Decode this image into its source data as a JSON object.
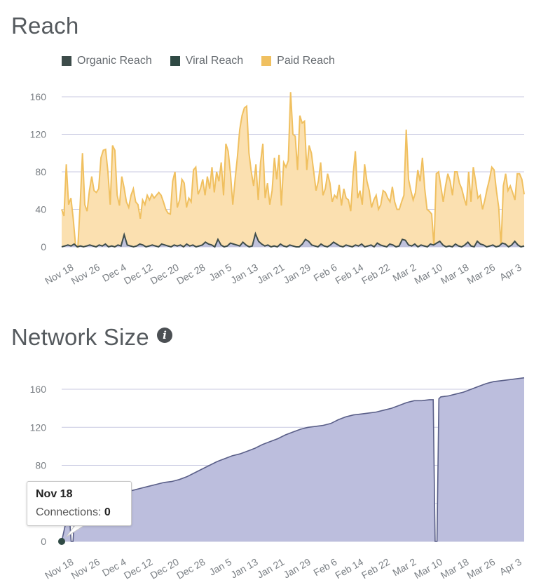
{
  "reach": {
    "title": "Reach"
  },
  "network": {
    "title": "Network Size",
    "info_icon": "info-icon"
  },
  "tooltip": {
    "date": "Nov 18",
    "label": "Connections:",
    "value": "0"
  },
  "colors": {
    "organic": "#3d4c4a",
    "viral": "#2f4a44",
    "paid_line": "#f0c060",
    "paid_fill": "#fbe0b0",
    "organic_fill": "#c0c2dc",
    "network_fill": "#bcbedd",
    "network_line": "#5a5f88",
    "grid": "#c9cae2"
  },
  "chart_data": [
    {
      "type": "area",
      "title": "Reach",
      "x_tick_labels": [
        "Nov 18",
        "Nov 26",
        "Dec 4",
        "Dec 12",
        "Dec 20",
        "Dec 28",
        "Jan 5",
        "Jan 13",
        "Jan 21",
        "Jan 29",
        "Feb 6",
        "Feb 14",
        "Feb 22",
        "Mar 2",
        "Mar 10",
        "Mar 18",
        "Mar 26",
        "Apr 3"
      ],
      "y_ticks": [
        0,
        40,
        80,
        120,
        160
      ],
      "ylim": [
        0,
        160
      ],
      "legend": [
        "Organic Reach",
        "Viral Reach",
        "Paid Reach"
      ],
      "legend_placement": "top-left",
      "grid": true,
      "series": [
        {
          "name": "Paid Reach",
          "values": [
            40,
            33,
            88,
            45,
            52,
            30,
            2,
            0,
            45,
            100,
            45,
            38,
            60,
            75,
            60,
            58,
            62,
            95,
            103,
            104,
            80,
            45,
            108,
            103,
            55,
            44,
            75,
            63,
            48,
            42,
            55,
            62,
            48,
            45,
            30,
            50,
            45,
            55,
            50,
            56,
            52,
            55,
            58,
            55,
            48,
            40,
            36,
            35,
            70,
            80,
            42,
            50,
            72,
            68,
            42,
            52,
            48,
            82,
            85,
            56,
            62,
            72,
            55,
            75,
            62,
            85,
            58,
            80,
            70,
            90,
            55,
            110,
            102,
            78,
            45,
            72,
            96,
            125,
            140,
            148,
            150,
            100,
            80,
            65,
            88,
            50,
            90,
            110,
            52,
            68,
            45,
            60,
            95,
            72,
            98,
            44,
            90,
            85,
            92,
            165,
            120,
            118,
            82,
            140,
            132,
            134,
            82,
            108,
            100,
            80,
            60,
            70,
            90,
            55,
            62,
            78,
            68,
            48,
            55,
            52,
            66,
            44,
            62,
            52,
            50,
            38,
            76,
            102,
            52,
            60,
            45,
            88,
            70,
            60,
            42,
            50,
            55,
            40,
            45,
            60,
            58,
            52,
            48,
            64,
            48,
            40,
            40,
            48,
            55,
            125,
            72,
            60,
            50,
            58,
            82,
            70,
            95,
            62,
            40,
            38,
            35,
            0,
            78,
            80,
            64,
            48,
            65,
            78,
            70,
            55,
            80,
            80,
            68,
            62,
            52,
            44,
            80,
            48,
            85,
            70,
            52,
            55,
            40,
            50,
            62,
            72,
            85,
            82,
            60,
            42,
            0,
            65,
            78,
            60,
            65,
            58,
            50,
            78,
            78,
            72,
            56
          ],
          "note_values_in_data_units": true
        },
        {
          "name": "Organic Reach",
          "values": [
            0,
            1,
            2,
            1,
            3,
            0,
            1,
            0,
            1,
            2,
            1,
            0,
            2,
            1,
            3,
            0,
            1,
            0,
            2,
            1,
            13,
            2,
            1,
            0,
            1,
            3,
            2,
            0,
            1,
            2,
            1,
            0,
            3,
            2,
            1,
            0,
            2,
            1,
            2,
            0,
            3,
            1,
            2,
            0,
            1,
            2,
            5,
            3,
            2,
            0,
            8,
            2,
            0,
            1,
            4,
            3,
            2,
            1,
            5,
            2,
            0,
            1,
            14,
            6,
            3,
            1,
            2,
            0,
            1,
            0,
            3,
            1,
            0,
            2,
            1,
            0,
            0,
            3,
            8,
            6,
            2,
            1,
            0,
            3,
            1,
            0,
            2,
            5,
            3,
            1,
            0,
            2,
            1,
            0,
            2,
            1,
            3,
            0,
            1,
            2,
            0,
            4,
            2,
            1,
            0,
            3,
            2,
            0,
            1,
            8,
            7,
            2,
            1,
            3,
            0,
            2,
            1,
            0,
            3,
            2,
            4,
            6,
            2,
            0,
            1,
            0,
            3,
            1,
            0,
            2,
            5,
            1,
            0,
            6,
            3,
            2,
            0,
            1,
            2,
            0,
            1,
            4,
            3,
            0,
            2,
            6,
            2,
            0,
            1
          ]
        },
        {
          "name": "Viral Reach",
          "values": []
        }
      ]
    },
    {
      "type": "area",
      "title": "Network Size",
      "x_tick_labels": [
        "Nov 18",
        "Nov 26",
        "Dec 4",
        "Dec 12",
        "Dec 20",
        "Dec 28",
        "Jan 5",
        "Jan 13",
        "Jan 21",
        "Jan 29",
        "Feb 6",
        "Feb 14",
        "Feb 22",
        "Mar 2",
        "Mar 10",
        "Mar 18",
        "Mar 26",
        "Apr 3"
      ],
      "y_ticks": [
        0,
        40,
        80,
        120,
        160
      ],
      "ylim": [
        0,
        160
      ],
      "grid": true,
      "series": [
        {
          "name": "Connections",
          "points": [
            [
              0,
              0
            ],
            [
              2,
              18
            ],
            [
              4,
              30
            ],
            [
              5,
              0
            ],
            [
              6,
              0
            ],
            [
              7,
              32
            ],
            [
              10,
              33
            ],
            [
              14,
              38
            ],
            [
              18,
              42
            ],
            [
              22,
              44
            ],
            [
              26,
              48
            ],
            [
              30,
              49
            ],
            [
              34,
              52
            ],
            [
              38,
              54
            ],
            [
              42,
              56
            ],
            [
              46,
              58
            ],
            [
              50,
              60
            ],
            [
              54,
              62
            ],
            [
              58,
              63
            ],
            [
              62,
              65
            ],
            [
              66,
              68
            ],
            [
              70,
              72
            ],
            [
              74,
              76
            ],
            [
              78,
              80
            ],
            [
              82,
              84
            ],
            [
              86,
              87
            ],
            [
              90,
              90
            ],
            [
              94,
              92
            ],
            [
              98,
              95
            ],
            [
              102,
              98
            ],
            [
              106,
              102
            ],
            [
              110,
              105
            ],
            [
              114,
              108
            ],
            [
              118,
              112
            ],
            [
              122,
              115
            ],
            [
              126,
              118
            ],
            [
              130,
              120
            ],
            [
              134,
              121
            ],
            [
              138,
              122
            ],
            [
              142,
              124
            ],
            [
              146,
              128
            ],
            [
              150,
              131
            ],
            [
              154,
              133
            ],
            [
              158,
              134
            ],
            [
              162,
              135
            ],
            [
              166,
              136
            ],
            [
              170,
              138
            ],
            [
              174,
              140
            ],
            [
              178,
              143
            ],
            [
              182,
              146
            ],
            [
              186,
              148
            ],
            [
              190,
              148
            ],
            [
              194,
              149
            ],
            [
              196,
              149
            ],
            [
              197,
              0
            ],
            [
              198,
              0
            ],
            [
              199,
              150
            ],
            [
              200,
              152
            ],
            [
              204,
              153
            ],
            [
              208,
              155
            ],
            [
              212,
              157
            ],
            [
              216,
              160
            ],
            [
              220,
              163
            ],
            [
              224,
              166
            ],
            [
              228,
              168
            ],
            [
              232,
              169
            ],
            [
              236,
              170
            ],
            [
              240,
              171
            ],
            [
              244,
              172
            ]
          ]
        }
      ]
    }
  ]
}
